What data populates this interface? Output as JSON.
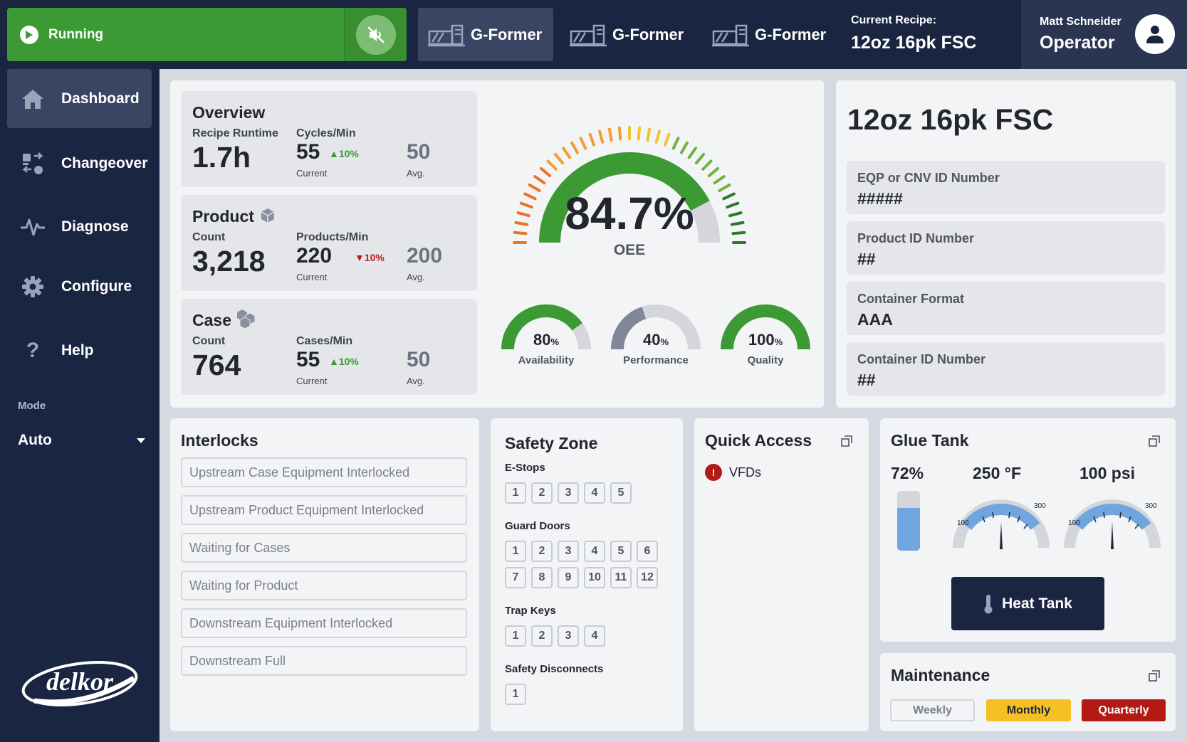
{
  "status": {
    "label": "Running"
  },
  "machines": [
    {
      "name": "G-Former"
    },
    {
      "name": "G-Former"
    },
    {
      "name": "G-Former"
    }
  ],
  "recipe": {
    "label": "Current Recipe:",
    "value": "12oz 16pk FSC"
  },
  "user": {
    "name": "Matt Schneider",
    "role": "Operator"
  },
  "nav": {
    "items": [
      {
        "label": "Dashboard",
        "icon": "home-icon"
      },
      {
        "label": "Changeover",
        "icon": "changeover-icon"
      },
      {
        "label": "Diagnose",
        "icon": "pulse-icon"
      },
      {
        "label": "Configure",
        "icon": "gear-icon"
      },
      {
        "label": "Help",
        "icon": "question-icon"
      }
    ],
    "mode_label": "Mode",
    "mode_value": "Auto",
    "logo_text": "delkor"
  },
  "overview": {
    "title": "Overview",
    "runtime_label": "Recipe Runtime",
    "runtime_value": "1.7h",
    "cycles_label": "Cycles/Min",
    "cycles_current": "55",
    "cycles_change": "10%",
    "cycles_avg": "50",
    "current_caption": "Current",
    "avg_caption": "Avg."
  },
  "product": {
    "title": "Product",
    "count_label": "Count",
    "count_value": "3,218",
    "rate_label": "Products/Min",
    "rate_current": "220",
    "rate_change": "10%",
    "rate_avg": "200",
    "current_caption": "Current",
    "avg_caption": "Avg."
  },
  "case": {
    "title": "Case",
    "count_label": "Count",
    "count_value": "764",
    "rate_label": "Cases/Min",
    "rate_current": "55",
    "rate_change": "10%",
    "rate_avg": "50",
    "current_caption": "Current",
    "avg_caption": "Avg."
  },
  "oee": {
    "value": "84.7%",
    "label": "OEE",
    "fraction": 0.847,
    "metrics": [
      {
        "value": "80",
        "unit": "%",
        "label": "Availability",
        "fraction": 0.8,
        "color": "#3b9a33"
      },
      {
        "value": "40",
        "unit": "%",
        "label": "Performance",
        "fraction": 0.4,
        "color": "#7f8799"
      },
      {
        "value": "100",
        "unit": "%",
        "label": "Quality",
        "fraction": 1.0,
        "color": "#3b9a33"
      }
    ]
  },
  "recipe_details": {
    "title": "12oz 16pk FSC",
    "fields": [
      {
        "label": "EQP or CNV ID Number",
        "value": "#####"
      },
      {
        "label": "Product ID Number",
        "value": "##"
      },
      {
        "label": "Container Format",
        "value": "AAA"
      },
      {
        "label": "Container ID Number",
        "value": "##"
      }
    ]
  },
  "interlocks": {
    "title": "Interlocks",
    "items": [
      "Upstream Case Equipment Interlocked",
      "Upstream Product Equipment Interlocked",
      "Waiting for Cases",
      "Waiting for Product",
      "Downstream Equipment Interlocked",
      "Downstream Full"
    ]
  },
  "safety": {
    "title": "Safety Zone",
    "estops_label": "E-Stops",
    "estops": [
      "1",
      "2",
      "3",
      "4",
      "5"
    ],
    "guard_label": "Guard Doors",
    "guard_row1": [
      "1",
      "2",
      "3",
      "4",
      "5",
      "6"
    ],
    "guard_row2": [
      "7",
      "8",
      "9",
      "10",
      "11",
      "12"
    ],
    "trap_label": "Trap Keys",
    "trap": [
      "1",
      "2",
      "3",
      "4"
    ],
    "disc_label": "Safety Disconnects",
    "disc": [
      "1"
    ]
  },
  "quick_access": {
    "title": "Quick Access",
    "items": [
      {
        "label": "VFDs",
        "alert": "!"
      }
    ]
  },
  "glue_tank": {
    "title": "Glue Tank",
    "level": "72%",
    "level_fraction": 0.72,
    "temp": "250 °F",
    "pressure": "100 psi",
    "gauge_min": "100",
    "gauge_max": "300",
    "button": "Heat Tank"
  },
  "maintenance": {
    "title": "Maintenance",
    "weekly": "Weekly",
    "monthly": "Monthly",
    "quarterly": "Quarterly",
    "colors": {
      "monthly": "#f5c026",
      "quarterly": "#b31a14"
    }
  }
}
